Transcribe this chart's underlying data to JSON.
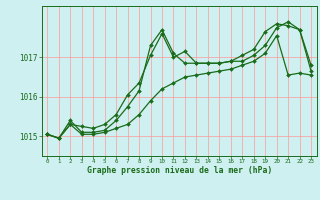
{
  "bg_color": "#cff0f0",
  "grid_color": "#ff9999",
  "line_color": "#1a6b1a",
  "xlim": [
    -0.5,
    23.5
  ],
  "ylim": [
    1014.5,
    1018.3
  ],
  "yticks": [
    1015,
    1016,
    1017
  ],
  "xticks": [
    0,
    1,
    2,
    3,
    4,
    5,
    6,
    7,
    8,
    9,
    10,
    11,
    12,
    13,
    14,
    15,
    16,
    17,
    18,
    19,
    20,
    21,
    22,
    23
  ],
  "xlabel": "Graphe pression niveau de la mer (hPa)",
  "series1_x": [
    0,
    1,
    2,
    3,
    4,
    5,
    6,
    7,
    8,
    9,
    10,
    11,
    12,
    13,
    14,
    15,
    16,
    17,
    18,
    19,
    20,
    21,
    22,
    23
  ],
  "series1_y": [
    1015.05,
    1014.95,
    1015.3,
    1015.25,
    1015.2,
    1015.3,
    1015.55,
    1016.05,
    1016.35,
    1017.05,
    1017.6,
    1017.0,
    1017.15,
    1016.85,
    1016.85,
    1016.85,
    1016.9,
    1016.9,
    1017.05,
    1017.3,
    1017.75,
    1017.9,
    1017.7,
    1016.8
  ],
  "series2_x": [
    0,
    1,
    2,
    3,
    4,
    5,
    6,
    7,
    8,
    9,
    10,
    11,
    12,
    13,
    14,
    15,
    16,
    17,
    18,
    19,
    20,
    21,
    22,
    23
  ],
  "series2_y": [
    1015.05,
    1014.95,
    1015.4,
    1015.1,
    1015.1,
    1015.15,
    1015.4,
    1015.75,
    1016.15,
    1017.3,
    1017.7,
    1017.1,
    1016.85,
    1016.85,
    1016.85,
    1016.85,
    1016.9,
    1017.05,
    1017.2,
    1017.65,
    1017.85,
    1017.8,
    1017.7,
    1016.65
  ],
  "series3_x": [
    0,
    1,
    2,
    3,
    4,
    5,
    6,
    7,
    8,
    9,
    10,
    11,
    12,
    13,
    14,
    15,
    16,
    17,
    18,
    19,
    20,
    21,
    22,
    23
  ],
  "series3_y": [
    1015.05,
    1014.95,
    1015.3,
    1015.05,
    1015.05,
    1015.1,
    1015.2,
    1015.3,
    1015.55,
    1015.9,
    1016.2,
    1016.35,
    1016.5,
    1016.55,
    1016.6,
    1016.65,
    1016.7,
    1016.8,
    1016.9,
    1017.1,
    1017.55,
    1016.55,
    1016.6,
    1016.55
  ]
}
